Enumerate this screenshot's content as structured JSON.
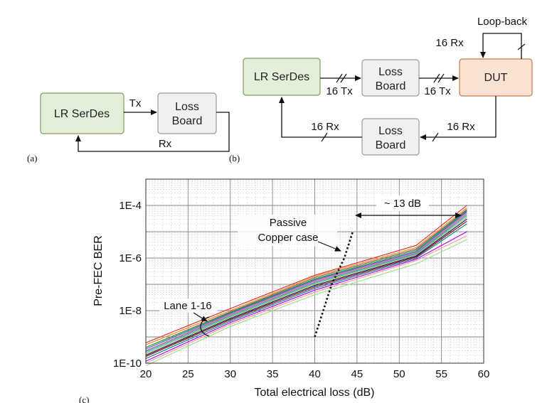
{
  "diagram_a": {
    "serdes": "LR SerDes",
    "loss_board": [
      "Loss",
      "Board"
    ],
    "tx": "Tx",
    "rx": "Rx",
    "panel_label": "(a)"
  },
  "diagram_b": {
    "serdes": "LR SerDes",
    "loss_board_top": [
      "Loss",
      "Board"
    ],
    "loss_board_bottom": [
      "Loss",
      "Board"
    ],
    "dut": "DUT",
    "loopback": "Loop-back",
    "rx_loop": "16 Rx",
    "tx_1": "16 Tx",
    "tx_2": "16 Tx",
    "rx_1": "16 Rx",
    "rx_2": "16 Rx",
    "panel_label": "(b)"
  },
  "chart_label": "(c)",
  "colors": {
    "serdes_fill": "#e3efd9",
    "serdes_stroke": "#7f9a5f",
    "loss_fill": "#f0f0f0",
    "loss_stroke": "#999999",
    "dut_fill": "#fbe3d3",
    "dut_stroke": "#c8774a"
  },
  "chart_data": {
    "type": "line",
    "title": "",
    "xlabel": "Total electrical loss (dB)",
    "ylabel": "Pre-FEC BER",
    "xlim": [
      20,
      60
    ],
    "ylim": [
      1e-10,
      0.001
    ],
    "y_scale": "log",
    "grid": true,
    "x_ticks": [
      "20",
      "25",
      "30",
      "35",
      "40",
      "45",
      "50",
      "55",
      "60"
    ],
    "y_ticks": [
      "1E-10",
      "1E-8",
      "1E-6",
      "1E-4"
    ],
    "annotations": {
      "lanes": "Lane 1-16",
      "passive": [
        "Passive",
        "Copper case"
      ],
      "delta": "~ 13 dB"
    },
    "lane_x": [
      20,
      30,
      40,
      52,
      58
    ],
    "series": [
      {
        "color": "#d62728",
        "y": [
          6e-10,
          1.2e-08,
          2.2e-07,
          3e-06,
          0.0001
        ]
      },
      {
        "color": "#ff7f0e",
        "y": [
          5e-10,
          1e-08,
          2e-07,
          2.5e-06,
          8e-05
        ]
      },
      {
        "color": "#8c564b",
        "y": [
          4e-10,
          9e-09,
          1.8e-07,
          2.2e-06,
          7e-05
        ]
      },
      {
        "color": "#2ca02c",
        "y": [
          4e-10,
          8.5e-09,
          1.6e-07,
          2e-06,
          6.5e-05
        ]
      },
      {
        "color": "#1f77b4",
        "y": [
          3.5e-10,
          8e-09,
          1.5e-07,
          1.8e-06,
          6e-05
        ]
      },
      {
        "color": "#9467bd",
        "y": [
          3e-10,
          7.5e-09,
          1.4e-07,
          1.7e-06,
          5.5e-05
        ]
      },
      {
        "color": "#e377c2",
        "y": [
          3e-10,
          7e-09,
          1.3e-07,
          1.6e-06,
          5e-05
        ]
      },
      {
        "color": "#7f7f7f",
        "y": [
          2.8e-10,
          6.5e-09,
          1.2e-07,
          1.5e-06,
          4.5e-05
        ]
      },
      {
        "color": "#17becf",
        "y": [
          2.5e-10,
          6e-09,
          1.1e-07,
          1.4e-06,
          4e-05
        ]
      },
      {
        "color": "#bcbd22",
        "y": [
          2.2e-10,
          5.5e-09,
          1e-07,
          1.3e-06,
          3.5e-05
        ]
      },
      {
        "color": "#000080",
        "y": [
          2e-10,
          5e-09,
          9e-08,
          1.2e-06,
          3e-05
        ]
      },
      {
        "color": "#800000",
        "y": [
          1.8e-10,
          4.5e-09,
          8e-08,
          1.1e-06,
          2.5e-05
        ]
      },
      {
        "color": "#008080",
        "y": [
          1.5e-10,
          4e-09,
          7e-08,
          1e-06,
          2e-05
        ]
      },
      {
        "color": "#aa00ff",
        "y": [
          1.2e-10,
          3.5e-09,
          6e-08,
          9e-07,
          1e-05
        ]
      },
      {
        "color": "#ff9896",
        "y": [
          1e-10,
          3e-09,
          5e-08,
          8e-07,
          7e-06
        ]
      },
      {
        "color": "#98df8a",
        "y": [
          8e-11,
          2.5e-09,
          4e-08,
          6e-07,
          5e-06
        ]
      }
    ],
    "passive_copper": {
      "x": [
        40,
        42,
        43.5,
        44.5
      ],
      "y": [
        1e-09,
        1e-07,
        1e-06,
        1e-05
      ]
    }
  }
}
